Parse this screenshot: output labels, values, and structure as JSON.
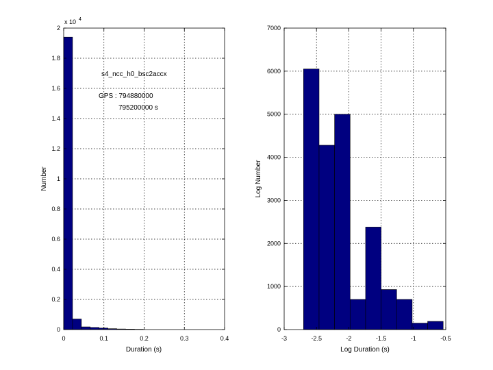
{
  "chart_data": [
    {
      "type": "bar",
      "xlabel": "Duration (s)",
      "ylabel": "Number",
      "xlim": [
        0,
        0.4
      ],
      "ylim": [
        0,
        20000
      ],
      "xticks": [
        "0",
        "0.1",
        "0.2",
        "0.3",
        "0.4"
      ],
      "xtick_values": [
        0,
        0.1,
        0.2,
        0.3,
        0.4
      ],
      "yticks": [
        "0",
        "0.2",
        "0.4",
        "0.6",
        "0.8",
        "1",
        "1.2",
        "1.4",
        "1.6",
        "1.8",
        "2"
      ],
      "ytick_values": [
        0,
        2000,
        4000,
        6000,
        8000,
        10000,
        12000,
        14000,
        16000,
        18000,
        20000
      ],
      "y_exponent_label": "x 10",
      "y_exponent": "4",
      "grid": true,
      "bins": [
        {
          "x0": 0.0,
          "x1": 0.022,
          "value": 19400
        },
        {
          "x0": 0.022,
          "x1": 0.044,
          "value": 700
        },
        {
          "x0": 0.044,
          "x1": 0.066,
          "value": 180
        },
        {
          "x0": 0.066,
          "x1": 0.088,
          "value": 140
        },
        {
          "x0": 0.088,
          "x1": 0.11,
          "value": 100
        },
        {
          "x0": 0.11,
          "x1": 0.132,
          "value": 60
        },
        {
          "x0": 0.132,
          "x1": 0.154,
          "value": 40
        },
        {
          "x0": 0.154,
          "x1": 0.176,
          "value": 30
        },
        {
          "x0": 0.176,
          "x1": 0.198,
          "value": 20
        }
      ],
      "annotations": {
        "channel": "s4_ncc_h0_bsc2accx",
        "gps_label": "GPS : 794880000",
        "gps_end": "795200000 s"
      }
    },
    {
      "type": "bar",
      "xlabel": "Log Duration (s)",
      "ylabel": "Log Number",
      "xlim": [
        -3,
        -0.5
      ],
      "ylim": [
        0,
        7000
      ],
      "xticks": [
        "-3",
        "-2.5",
        "-2",
        "-1.5",
        "-1",
        "-0.5"
      ],
      "xtick_values": [
        -3,
        -2.5,
        -2,
        -1.5,
        -1,
        -0.5
      ],
      "yticks": [
        "0",
        "1000",
        "2000",
        "3000",
        "4000",
        "5000",
        "6000",
        "7000"
      ],
      "ytick_values": [
        0,
        1000,
        2000,
        3000,
        4000,
        5000,
        6000,
        7000
      ],
      "grid": true,
      "bins": [
        {
          "x0": -2.7,
          "x1": -2.46,
          "value": 6050
        },
        {
          "x0": -2.46,
          "x1": -2.22,
          "value": 4280
        },
        {
          "x0": -2.22,
          "x1": -1.98,
          "value": 5000
        },
        {
          "x0": -1.98,
          "x1": -1.74,
          "value": 700
        },
        {
          "x0": -1.74,
          "x1": -1.5,
          "value": 2380
        },
        {
          "x0": -1.5,
          "x1": -1.26,
          "value": 930
        },
        {
          "x0": -1.26,
          "x1": -1.02,
          "value": 700
        },
        {
          "x0": -1.02,
          "x1": -0.78,
          "value": 150
        },
        {
          "x0": -0.78,
          "x1": -0.54,
          "value": 190
        }
      ]
    }
  ]
}
